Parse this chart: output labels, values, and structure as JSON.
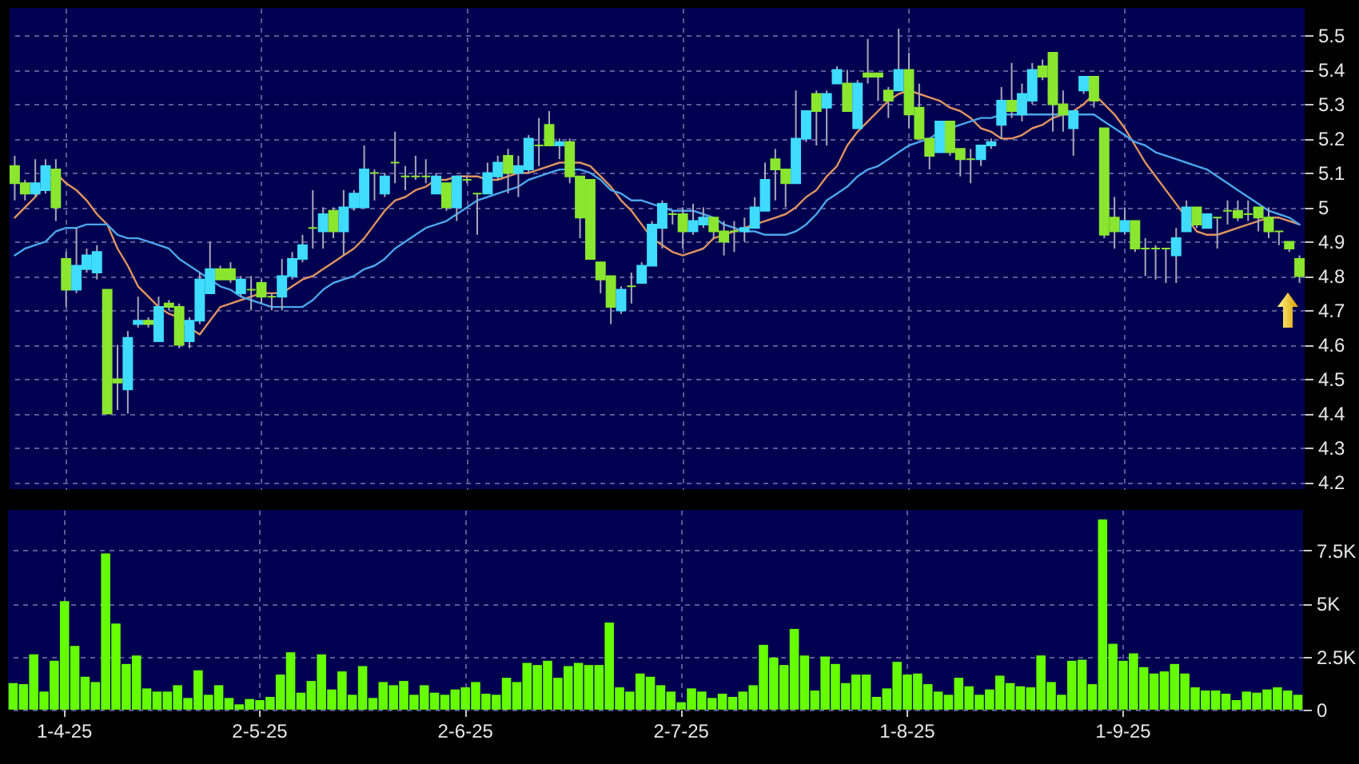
{
  "chart_data": [
    {
      "type": "candlestick",
      "categories": [
        null,
        null,
        null,
        null,
        null,
        null,
        null,
        null,
        null,
        null,
        null,
        null,
        null,
        null,
        null,
        null,
        null,
        null,
        null,
        null,
        null,
        null,
        null,
        null,
        null,
        null,
        null,
        null,
        null,
        null,
        null,
        null,
        null,
        null,
        null,
        null,
        null,
        null,
        null,
        null,
        null,
        null,
        null,
        null,
        null,
        null,
        null,
        null,
        null,
        null,
        null,
        null,
        null,
        null,
        null,
        null,
        null,
        null,
        null,
        null,
        null,
        null,
        null,
        null,
        null,
        null,
        null,
        null,
        null,
        null,
        null,
        null,
        null,
        null,
        null,
        null,
        null,
        null,
        null,
        null,
        null,
        null,
        null,
        null,
        null,
        null,
        null,
        null,
        null,
        null,
        null,
        null,
        null,
        null,
        null,
        null,
        null,
        null,
        null,
        null,
        null,
        null,
        null,
        null,
        null,
        null,
        null,
        null,
        null,
        null,
        null,
        null,
        null,
        null,
        null,
        null,
        null,
        null,
        null,
        null,
        null,
        null,
        null,
        null,
        null,
        null
      ],
      "tick_labels": "y",
      "ylim": [
        4.18,
        5.58
      ],
      "yticks": [
        4.2,
        4.3,
        4.4,
        4.5,
        4.6,
        4.7,
        4.8,
        4.9,
        5,
        5.1,
        5.2,
        5.3,
        5.4,
        5.5
      ],
      "grid": true,
      "ohlc": [
        [
          5.12,
          5.15,
          5.02,
          5.07
        ],
        [
          5.07,
          5.08,
          5.02,
          5.04
        ],
        [
          5.04,
          5.14,
          5.03,
          5.07
        ],
        [
          5.05,
          5.14,
          5.04,
          5.12
        ],
        [
          5.11,
          5.14,
          4.96,
          5.0
        ],
        [
          4.85,
          4.87,
          4.71,
          4.76
        ],
        [
          4.76,
          4.94,
          4.75,
          4.83
        ],
        [
          4.82,
          4.88,
          4.81,
          4.86
        ],
        [
          4.81,
          4.89,
          4.79,
          4.87
        ],
        [
          4.76,
          4.76,
          4.4,
          4.4
        ],
        [
          4.5,
          4.6,
          4.41,
          4.49
        ],
        [
          4.47,
          4.64,
          4.4,
          4.62
        ],
        [
          4.66,
          4.74,
          4.65,
          4.67
        ],
        [
          4.67,
          4.68,
          4.65,
          4.66
        ],
        [
          4.61,
          4.74,
          4.61,
          4.71
        ],
        [
          4.72,
          4.73,
          4.7,
          4.71
        ],
        [
          4.71,
          4.72,
          4.59,
          4.6
        ],
        [
          4.61,
          4.68,
          4.59,
          4.67
        ],
        [
          4.67,
          4.81,
          4.66,
          4.79
        ],
        [
          4.75,
          4.9,
          4.75,
          4.82
        ],
        [
          4.82,
          4.83,
          4.79,
          4.79
        ],
        [
          4.82,
          4.84,
          4.78,
          4.79
        ],
        [
          4.75,
          4.8,
          4.74,
          4.79
        ],
        [
          4.76,
          4.8,
          4.7,
          4.76
        ],
        [
          4.78,
          4.79,
          4.72,
          4.74
        ],
        [
          4.74,
          4.75,
          4.7,
          4.74
        ],
        [
          4.74,
          4.85,
          4.7,
          4.8
        ],
        [
          4.8,
          4.87,
          4.79,
          4.85
        ],
        [
          4.85,
          4.92,
          4.84,
          4.89
        ],
        [
          4.94,
          5.05,
          4.88,
          4.94
        ],
        [
          4.93,
          5.0,
          4.88,
          4.98
        ],
        [
          4.99,
          5.0,
          4.91,
          4.93
        ],
        [
          4.93,
          5.05,
          4.86,
          5.0
        ],
        [
          5.0,
          5.05,
          4.99,
          5.04
        ],
        [
          5.0,
          5.18,
          5.0,
          5.11
        ],
        [
          5.1,
          5.11,
          5.02,
          5.1
        ],
        [
          5.04,
          5.1,
          5.03,
          5.09
        ],
        [
          5.13,
          5.22,
          5.07,
          5.13
        ],
        [
          5.09,
          5.12,
          5.05,
          5.09
        ],
        [
          5.09,
          5.15,
          5.08,
          5.09
        ],
        [
          5.09,
          5.14,
          5.07,
          5.09
        ],
        [
          5.04,
          5.1,
          5.04,
          5.09
        ],
        [
          5.07,
          5.07,
          4.99,
          5.0
        ],
        [
          5.0,
          5.09,
          4.96,
          5.09
        ],
        [
          5.08,
          5.09,
          5.07,
          5.08
        ],
        [
          5.04,
          5.04,
          4.92,
          5.04
        ],
        [
          5.04,
          5.13,
          5.04,
          5.1
        ],
        [
          5.09,
          5.15,
          5.08,
          5.13
        ],
        [
          5.15,
          5.17,
          5.04,
          5.1
        ],
        [
          5.1,
          5.15,
          5.03,
          5.12
        ],
        [
          5.11,
          5.21,
          5.1,
          5.2
        ],
        [
          5.18,
          5.26,
          5.12,
          5.18
        ],
        [
          5.24,
          5.28,
          5.18,
          5.18
        ],
        [
          5.18,
          5.2,
          5.14,
          5.19
        ],
        [
          5.19,
          5.2,
          5.07,
          5.09
        ],
        [
          5.09,
          5.09,
          4.91,
          4.97
        ],
        [
          5.08,
          5.08,
          4.85,
          4.85
        ],
        [
          4.84,
          4.84,
          4.75,
          4.79
        ],
        [
          4.8,
          4.8,
          4.66,
          4.71
        ],
        [
          4.7,
          4.77,
          4.69,
          4.76
        ],
        [
          4.77,
          4.81,
          4.72,
          4.77
        ],
        [
          4.78,
          4.84,
          4.78,
          4.83
        ],
        [
          4.83,
          4.96,
          4.83,
          4.95
        ],
        [
          4.94,
          5.02,
          4.88,
          5.01
        ],
        [
          4.98,
          4.99,
          4.95,
          4.98
        ],
        [
          4.98,
          5.0,
          4.88,
          4.93
        ],
        [
          4.93,
          5.01,
          4.92,
          4.96
        ],
        [
          4.95,
          5.0,
          4.94,
          4.97
        ],
        [
          4.97,
          4.97,
          4.91,
          4.93
        ],
        [
          4.93,
          4.96,
          4.86,
          4.9
        ],
        [
          4.93,
          4.96,
          4.87,
          4.93
        ],
        [
          4.93,
          4.97,
          4.9,
          4.94
        ],
        [
          4.94,
          5.03,
          4.94,
          5.0
        ],
        [
          4.99,
          5.13,
          4.99,
          5.08
        ],
        [
          5.14,
          5.17,
          5.02,
          5.11
        ],
        [
          5.11,
          5.11,
          5.0,
          5.07
        ],
        [
          5.07,
          5.34,
          5.07,
          5.2
        ],
        [
          5.2,
          5.28,
          5.19,
          5.28
        ],
        [
          5.33,
          5.34,
          5.18,
          5.28
        ],
        [
          5.29,
          5.34,
          5.18,
          5.33
        ],
        [
          5.36,
          5.41,
          5.36,
          5.4
        ],
        [
          5.36,
          5.4,
          5.28,
          5.28
        ],
        [
          5.23,
          5.37,
          5.23,
          5.36
        ],
        [
          5.39,
          5.49,
          5.36,
          5.38
        ],
        [
          5.39,
          5.39,
          5.31,
          5.38
        ],
        [
          5.34,
          5.35,
          5.26,
          5.31
        ],
        [
          5.34,
          5.52,
          5.34,
          5.4
        ],
        [
          5.4,
          5.45,
          5.23,
          5.27
        ],
        [
          5.29,
          5.36,
          5.2,
          5.2
        ],
        [
          5.2,
          5.2,
          5.11,
          5.15
        ],
        [
          5.16,
          5.25,
          5.16,
          5.25
        ],
        [
          5.25,
          5.25,
          5.15,
          5.16
        ],
        [
          5.17,
          5.17,
          5.09,
          5.14
        ],
        [
          5.14,
          5.17,
          5.07,
          5.14
        ],
        [
          5.14,
          5.18,
          5.12,
          5.18
        ],
        [
          5.18,
          5.2,
          5.17,
          5.19
        ],
        [
          5.24,
          5.35,
          5.2,
          5.31
        ],
        [
          5.31,
          5.42,
          5.26,
          5.28
        ],
        [
          5.27,
          5.36,
          5.25,
          5.33
        ],
        [
          5.31,
          5.42,
          5.3,
          5.4
        ],
        [
          5.41,
          5.43,
          5.37,
          5.38
        ],
        [
          5.45,
          5.45,
          5.22,
          5.3
        ],
        [
          5.3,
          5.34,
          5.22,
          5.27
        ],
        [
          5.23,
          5.28,
          5.15,
          5.28
        ],
        [
          5.34,
          5.38,
          5.33,
          5.38
        ],
        [
          5.38,
          5.38,
          5.29,
          5.31
        ],
        [
          5.23,
          5.23,
          4.91,
          4.92
        ],
        [
          4.97,
          5.03,
          4.88,
          4.93
        ],
        [
          4.93,
          5.0,
          4.92,
          4.96
        ],
        [
          4.96,
          4.96,
          4.87,
          4.88
        ],
        [
          4.88,
          4.91,
          4.8,
          4.88
        ],
        [
          4.88,
          4.89,
          4.79,
          4.88
        ],
        [
          4.88,
          4.88,
          4.78,
          4.88
        ],
        [
          4.86,
          4.94,
          4.78,
          4.91
        ],
        [
          4.93,
          5.02,
          4.93,
          5.0
        ],
        [
          5.0,
          5.0,
          4.94,
          4.95
        ],
        [
          4.94,
          4.98,
          4.94,
          4.98
        ],
        [
          4.97,
          4.97,
          4.88,
          4.97
        ],
        [
          4.99,
          5.02,
          4.95,
          4.99
        ],
        [
          4.99,
          5.02,
          4.96,
          4.97
        ],
        [
          4.98,
          5.02,
          4.96,
          4.98
        ],
        [
          5.0,
          5.0,
          4.93,
          4.97
        ],
        [
          4.97,
          5.0,
          4.91,
          4.93
        ],
        [
          4.93,
          4.93,
          4.89,
          4.93
        ],
        [
          4.9,
          4.9,
          4.87,
          4.88
        ],
        [
          4.85,
          4.86,
          4.78,
          4.8
        ]
      ],
      "colors": [
        "#8ae62e",
        "#8ae62e",
        "#3fdcff",
        "#3fdcff",
        "#8ae62e",
        "#8ae62e",
        "#3fdcff",
        "#3fdcff",
        "#3fdcff",
        "#8ae62e",
        "#8ae62e",
        "#3fdcff",
        "#3fdcff",
        "#8ae62e",
        "#3fdcff",
        "#8ae62e",
        "#8ae62e",
        "#3fdcff",
        "#3fdcff",
        "#3fdcff",
        "#8ae62e",
        "#8ae62e",
        "#3fdcff",
        "#8ae62e",
        "#8ae62e",
        "#8ae62e",
        "#3fdcff",
        "#3fdcff",
        "#3fdcff",
        "#8ae62e",
        "#3fdcff",
        "#8ae62e",
        "#3fdcff",
        "#3fdcff",
        "#3fdcff",
        "#8ae62e",
        "#3fdcff",
        "#8ae62e",
        "#8ae62e",
        "#8ae62e",
        "#8ae62e",
        "#3fdcff",
        "#8ae62e",
        "#3fdcff",
        "#8ae62e",
        "#8ae62e",
        "#3fdcff",
        "#3fdcff",
        "#8ae62e",
        "#3fdcff",
        "#3fdcff",
        "#8ae62e",
        "#8ae62e",
        "#3fdcff",
        "#8ae62e",
        "#8ae62e",
        "#8ae62e",
        "#8ae62e",
        "#8ae62e",
        "#3fdcff",
        "#8ae62e",
        "#3fdcff",
        "#3fdcff",
        "#3fdcff",
        "#8ae62e",
        "#8ae62e",
        "#3fdcff",
        "#3fdcff",
        "#8ae62e",
        "#8ae62e",
        "#8ae62e",
        "#3fdcff",
        "#3fdcff",
        "#3fdcff",
        "#8ae62e",
        "#8ae62e",
        "#3fdcff",
        "#3fdcff",
        "#8ae62e",
        "#3fdcff",
        "#3fdcff",
        "#8ae62e",
        "#3fdcff",
        "#8ae62e",
        "#8ae62e",
        "#8ae62e",
        "#3fdcff",
        "#8ae62e",
        "#8ae62e",
        "#8ae62e",
        "#3fdcff",
        "#8ae62e",
        "#8ae62e",
        "#8ae62e",
        "#3fdcff",
        "#3fdcff",
        "#3fdcff",
        "#8ae62e",
        "#3fdcff",
        "#3fdcff",
        "#8ae62e",
        "#8ae62e",
        "#8ae62e",
        "#3fdcff",
        "#3fdcff",
        "#8ae62e",
        "#8ae62e",
        "#8ae62e",
        "#3fdcff",
        "#8ae62e",
        "#8ae62e",
        "#8ae62e",
        "#8ae62e",
        "#3fdcff",
        "#3fdcff",
        "#8ae62e",
        "#3fdcff",
        "#8ae62e",
        "#8ae62e",
        "#8ae62e",
        "#8ae62e",
        "#8ae62e",
        "#8ae62e",
        "#8ae62e",
        "#8ae62e",
        "#8ae62e"
      ],
      "series": [
        {
          "type": "line",
          "color": "#e0955f",
          "values": [
            4.97,
            5.0,
            5.03,
            5.07,
            5.1,
            5.07,
            5.05,
            5.02,
            4.98,
            4.95,
            4.88,
            4.83,
            4.77,
            4.74,
            4.71,
            4.69,
            4.68,
            4.65,
            4.63,
            4.67,
            4.71,
            4.72,
            4.73,
            4.74,
            4.75,
            4.75,
            4.75,
            4.77,
            4.79,
            4.8,
            4.82,
            4.84,
            4.86,
            4.88,
            4.91,
            4.95,
            4.99,
            5.02,
            5.03,
            5.05,
            5.06,
            5.08,
            5.08,
            5.09,
            5.09,
            5.09,
            5.08,
            5.08,
            5.09,
            5.1,
            5.1,
            5.11,
            5.12,
            5.13,
            5.13,
            5.13,
            5.12,
            5.09,
            5.06,
            5.02,
            4.99,
            4.95,
            4.91,
            4.89,
            4.87,
            4.86,
            4.87,
            4.88,
            4.91,
            4.92,
            4.93,
            4.94,
            4.95,
            4.96,
            4.97,
            4.98,
            5.0,
            5.03,
            5.05,
            5.09,
            5.12,
            5.18,
            5.22,
            5.25,
            5.28,
            5.31,
            5.33,
            5.34,
            5.33,
            5.32,
            5.31,
            5.29,
            5.28,
            5.26,
            5.23,
            5.22,
            5.2,
            5.2,
            5.21,
            5.23,
            5.24,
            5.26,
            5.27,
            5.28,
            5.3,
            5.33,
            5.3,
            5.27,
            5.23,
            5.18,
            5.13,
            5.09,
            5.05,
            5.01,
            4.97,
            4.93,
            4.92,
            4.92,
            4.93,
            4.94,
            4.95,
            4.96,
            4.97,
            4.97,
            4.96,
            4.95
          ]
        },
        {
          "type": "line",
          "color": "#4da6e8",
          "values": [
            4.86,
            4.88,
            4.89,
            4.9,
            4.93,
            4.94,
            4.94,
            4.95,
            4.95,
            4.95,
            4.92,
            4.91,
            4.91,
            4.9,
            4.89,
            4.88,
            4.85,
            4.83,
            4.81,
            4.79,
            4.77,
            4.76,
            4.74,
            4.73,
            4.72,
            4.71,
            4.71,
            4.71,
            4.71,
            4.73,
            4.76,
            4.78,
            4.79,
            4.8,
            4.82,
            4.83,
            4.85,
            4.88,
            4.9,
            4.92,
            4.94,
            4.95,
            4.96,
            4.98,
            5.0,
            5.02,
            5.03,
            5.04,
            5.05,
            5.06,
            5.08,
            5.09,
            5.1,
            5.11,
            5.11,
            5.11,
            5.1,
            5.08,
            5.05,
            5.04,
            5.02,
            5.02,
            5.01,
            5.0,
            4.99,
            4.99,
            4.99,
            4.98,
            4.97,
            4.95,
            4.94,
            4.93,
            4.93,
            4.92,
            4.92,
            4.92,
            4.93,
            4.95,
            4.98,
            5.02,
            5.04,
            5.06,
            5.09,
            5.11,
            5.12,
            5.14,
            5.16,
            5.18,
            5.19,
            5.2,
            5.22,
            5.23,
            5.24,
            5.25,
            5.26,
            5.26,
            5.27,
            5.27,
            5.27,
            5.27,
            5.27,
            5.27,
            5.27,
            5.27,
            5.27,
            5.27,
            5.25,
            5.23,
            5.21,
            5.19,
            5.18,
            5.16,
            5.15,
            5.14,
            5.13,
            5.12,
            5.11,
            5.09,
            5.07,
            5.05,
            5.03,
            5.01,
            4.99,
            4.98,
            4.97,
            4.95
          ]
        }
      ]
    },
    {
      "type": "bar",
      "categories": [
        null,
        null,
        null,
        null,
        null,
        "1-4-25",
        null,
        null,
        null,
        null,
        null,
        null,
        null,
        null,
        null,
        null,
        null,
        null,
        null,
        null,
        null,
        null,
        null,
        null,
        "2-5-25",
        null,
        null,
        null,
        null,
        null,
        null,
        null,
        null,
        null,
        null,
        null,
        null,
        null,
        null,
        null,
        null,
        null,
        null,
        null,
        "2-6-25",
        null,
        null,
        null,
        null,
        null,
        null,
        null,
        null,
        null,
        null,
        null,
        null,
        null,
        null,
        null,
        null,
        null,
        null,
        null,
        null,
        "2-7-25",
        null,
        null,
        null,
        null,
        null,
        null,
        null,
        null,
        null,
        null,
        null,
        null,
        null,
        null,
        null,
        null,
        null,
        null,
        null,
        null,
        null,
        "1-8-25",
        null,
        null,
        null,
        null,
        null,
        null,
        null,
        null,
        null,
        null,
        null,
        null,
        null,
        null,
        null,
        null,
        null,
        null,
        null,
        null,
        "1-9-25",
        null,
        null,
        null,
        null,
        null,
        null,
        null,
        null,
        null,
        null,
        null,
        null,
        null,
        null,
        null,
        null,
        null
      ],
      "values": [
        1250,
        1200,
        2600,
        850,
        2300,
        5100,
        3000,
        1550,
        1300,
        7350,
        4050,
        2150,
        2550,
        1000,
        850,
        850,
        1150,
        550,
        1850,
        700,
        1150,
        550,
        250,
        500,
        450,
        600,
        1650,
        2700,
        800,
        1350,
        2600,
        950,
        1800,
        700,
        2050,
        550,
        1300,
        1150,
        1350,
        700,
        1150,
        800,
        700,
        950,
        1050,
        1300,
        750,
        700,
        1500,
        1300,
        2200,
        2100,
        2300,
        1500,
        2050,
        2200,
        2100,
        2100,
        4100,
        1050,
        850,
        1700,
        1550,
        1150,
        850,
        350,
        1000,
        850,
        550,
        750,
        600,
        850,
        1150,
        3050,
        2450,
        2100,
        3800,
        2550,
        900,
        2500,
        2150,
        1250,
        1650,
        1650,
        600,
        1000,
        2250,
        1650,
        1700,
        1200,
        850,
        700,
        1500,
        1100,
        700,
        950,
        1600,
        1250,
        1100,
        1050,
        2550,
        1300,
        700,
        2300,
        2350,
        1200,
        8950,
        3100,
        2300,
        2650,
        2000,
        1700,
        1800,
        2150,
        1700,
        1050,
        900,
        900,
        750,
        450,
        850,
        800,
        950,
        1050,
        900,
        700
      ],
      "color": "#66ff00",
      "ylim": [
        0,
        9400
      ],
      "yticks": [
        0,
        {
          "value": 2500,
          "label": "2.5K"
        },
        {
          "value": 5000,
          "label": "5K"
        },
        {
          "value": 7500,
          "label": "7.5K"
        }
      ],
      "grid": true
    }
  ]
}
